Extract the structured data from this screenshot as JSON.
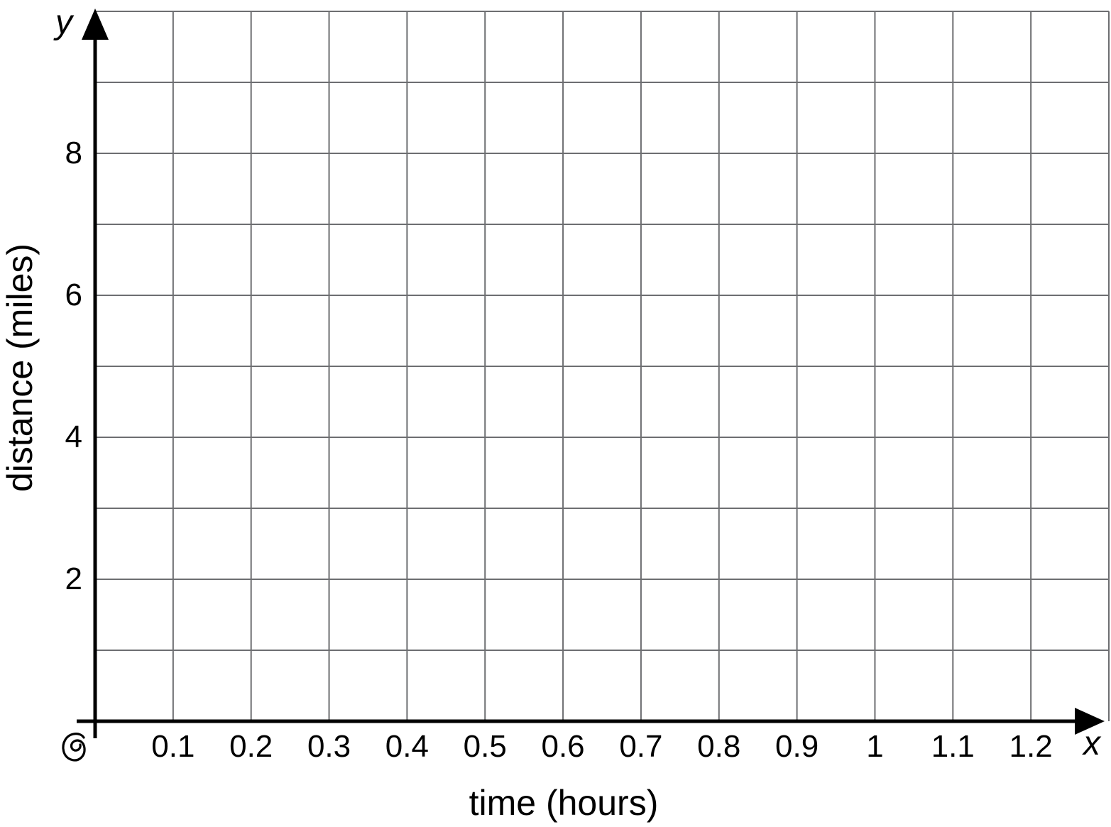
{
  "chart_data": {
    "type": "scatter",
    "title": "",
    "xlabel": "time (hours)",
    "ylabel": "distance (miles)",
    "x_axis_letter": "x",
    "y_axis_letter": "y",
    "origin_label": "0",
    "xlim": [
      0,
      1.3
    ],
    "ylim": [
      0,
      10
    ],
    "x_tick_step": 0.1,
    "y_tick_step": 1,
    "x_tick_values": [
      0.1,
      0.2,
      0.3,
      0.4,
      0.5,
      0.6,
      0.7,
      0.8,
      0.9,
      1,
      1.1,
      1.2
    ],
    "x_tick_labels": [
      "0.1",
      "0.2",
      "0.3",
      "0.4",
      "0.5",
      "0.6",
      "0.7",
      "0.8",
      "0.9",
      "1",
      "1.1",
      "1.2"
    ],
    "y_tick_values": [
      2,
      4,
      6,
      8
    ],
    "y_tick_labels": [
      "2",
      "4",
      "6",
      "8"
    ],
    "grid": true,
    "legend": false,
    "series": [],
    "note": "empty coordinate grid, no data points or lines plotted",
    "colors": {
      "grid_line": "#6d6e71",
      "axis": "#000000",
      "text": "#000000",
      "background": "#ffffff"
    }
  }
}
